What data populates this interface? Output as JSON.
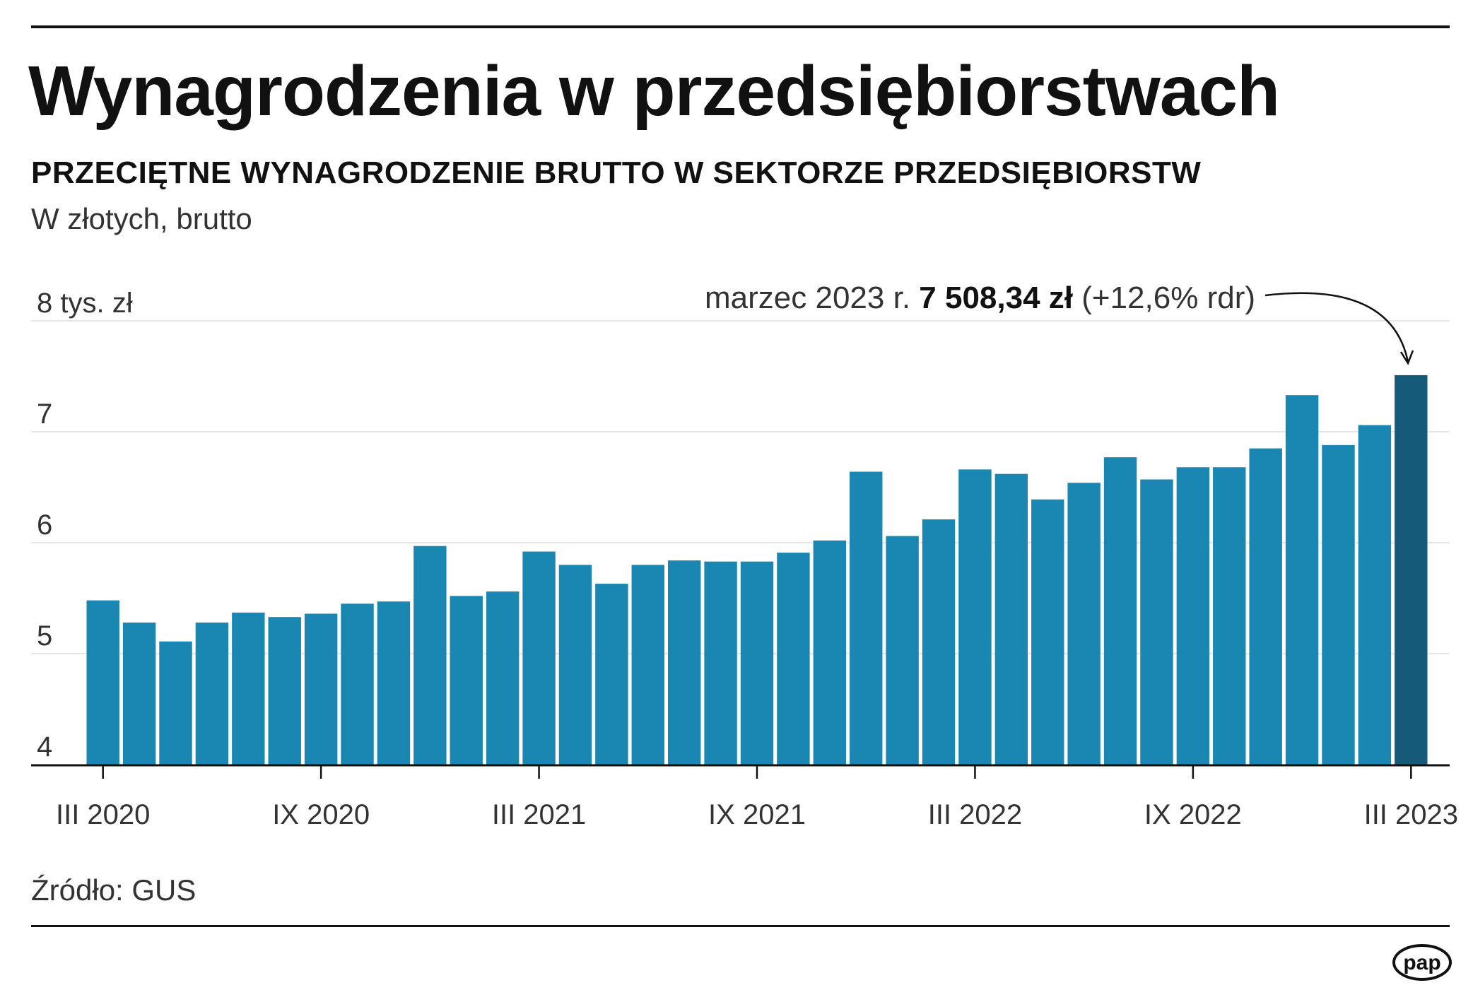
{
  "title": "Wynagrodzenia w przedsiębiorstwach",
  "subtitle": "PRZECIĘTNE WYNAGRODZENIE BRUTTO W SEKTORZE PRZEDSIĘBIORSTW",
  "unit_note": "W złotych, brutto",
  "source": "Źródło: GUS",
  "logo": "pap",
  "colors": {
    "bar": "#1a87b3",
    "highlight": "#155a78",
    "grid": "#e6e6e6",
    "axis": "#111111"
  },
  "chart_data": {
    "type": "bar",
    "ylabel": "tys. zł",
    "ylim": [
      4,
      8
    ],
    "y_ticks": [
      4,
      5,
      6,
      7,
      8
    ],
    "y_tick_labels": [
      "4",
      "5",
      "6",
      "7",
      "8 tys. zł"
    ],
    "grid": true,
    "x_tick_labels": [
      {
        "index": 0,
        "label": "III 2020"
      },
      {
        "index": 6,
        "label": "IX 2020"
      },
      {
        "index": 12,
        "label": "III 2021"
      },
      {
        "index": 18,
        "label": "IX 2021"
      },
      {
        "index": 24,
        "label": "III 2022"
      },
      {
        "index": 30,
        "label": "IX 2022"
      },
      {
        "index": 36,
        "label": "III 2023"
      }
    ],
    "categories": [
      "III 2020",
      "IV 2020",
      "V 2020",
      "VI 2020",
      "VII 2020",
      "VIII 2020",
      "IX 2020",
      "X 2020",
      "XI 2020",
      "XII 2020",
      "I 2021",
      "II 2021",
      "III 2021",
      "IV 2021",
      "V 2021",
      "VI 2021",
      "VII 2021",
      "VIII 2021",
      "IX 2021",
      "X 2021",
      "XI 2021",
      "XII 2021",
      "I 2022",
      "II 2022",
      "III 2022",
      "IV 2022",
      "V 2022",
      "VI 2022",
      "VII 2022",
      "VIII 2022",
      "IX 2022",
      "X 2022",
      "XI 2022",
      "XII 2022",
      "I 2023",
      "II 2023",
      "III 2023"
    ],
    "values": [
      5.48,
      5.28,
      5.11,
      5.28,
      5.37,
      5.33,
      5.36,
      5.45,
      5.47,
      5.97,
      5.52,
      5.56,
      5.92,
      5.8,
      5.63,
      5.8,
      5.84,
      5.83,
      5.83,
      5.91,
      6.02,
      6.64,
      6.06,
      6.21,
      6.66,
      6.62,
      6.39,
      6.54,
      6.77,
      6.57,
      6.68,
      6.68,
      6.85,
      7.33,
      6.88,
      7.06,
      7.51
    ],
    "highlight_index": 36,
    "annotation": {
      "prefix": "marzec 2023 r. ",
      "value": "7 508,34 zł",
      "suffix": " (+12,6% rdr)"
    }
  }
}
